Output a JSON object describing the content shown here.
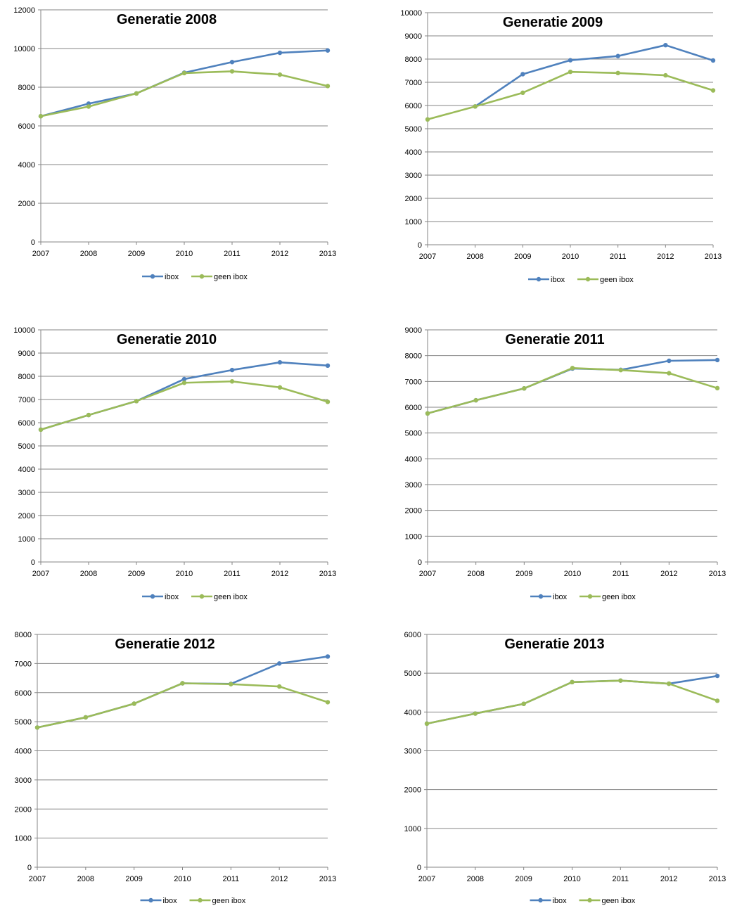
{
  "colors": {
    "ibox": "#4F81BD",
    "geen_ibox": "#9BBB59",
    "grid": "#868686",
    "axis": "#868686"
  },
  "chart_data": [
    {
      "type": "line",
      "title": "Generatie 2008",
      "categories": [
        "2007",
        "2008",
        "2009",
        "2010",
        "2011",
        "2012",
        "2013"
      ],
      "yticks": [
        "0",
        "2000",
        "4000",
        "6000",
        "8000",
        "10000",
        "12000"
      ],
      "ylim": [
        0,
        12000
      ],
      "grid": true,
      "legend": "bottom",
      "series": [
        {
          "name": "ibox",
          "color": "#4F81BD",
          "values": [
            6500,
            7150,
            7680,
            8750,
            9300,
            9780,
            9900
          ]
        },
        {
          "name": "geen ibox",
          "color": "#9BBB59",
          "values": [
            6500,
            7000,
            7680,
            8730,
            8820,
            8650,
            8060
          ]
        }
      ]
    },
    {
      "type": "line",
      "title": "Generatie 2009",
      "categories": [
        "2007",
        "2008",
        "2009",
        "2010",
        "2011",
        "2012",
        "2013"
      ],
      "yticks": [
        "0",
        "1000",
        "2000",
        "3000",
        "4000",
        "5000",
        "6000",
        "7000",
        "8000",
        "9000",
        "10000"
      ],
      "ylim": [
        0,
        10000
      ],
      "grid": true,
      "legend": "bottom",
      "series": [
        {
          "name": "ibox",
          "color": "#4F81BD",
          "values": [
            null,
            5960,
            7350,
            7950,
            8130,
            8600,
            7940
          ]
        },
        {
          "name": "geen ibox",
          "color": "#9BBB59",
          "values": [
            5400,
            5960,
            6550,
            7450,
            7400,
            7300,
            6650
          ]
        }
      ]
    },
    {
      "type": "line",
      "title": "Generatie 2010",
      "categories": [
        "2007",
        "2008",
        "2009",
        "2010",
        "2011",
        "2012",
        "2013"
      ],
      "yticks": [
        "0",
        "1000",
        "2000",
        "3000",
        "4000",
        "5000",
        "6000",
        "7000",
        "8000",
        "9000",
        "10000"
      ],
      "ylim": [
        0,
        10000
      ],
      "grid": true,
      "legend": "bottom",
      "series": [
        {
          "name": "ibox",
          "color": "#4F81BD",
          "values": [
            5700,
            6330,
            6930,
            7880,
            8270,
            8600,
            8460
          ]
        },
        {
          "name": "geen ibox",
          "color": "#9BBB59",
          "values": [
            5700,
            6330,
            6930,
            7720,
            7780,
            7520,
            6900
          ]
        }
      ]
    },
    {
      "type": "line",
      "title": "Generatie 2011",
      "categories": [
        "2007",
        "2008",
        "2009",
        "2010",
        "2011",
        "2012",
        "2013"
      ],
      "yticks": [
        "0",
        "1000",
        "2000",
        "3000",
        "4000",
        "5000",
        "6000",
        "7000",
        "8000",
        "9000"
      ],
      "ylim": [
        0,
        9000
      ],
      "grid": true,
      "legend": "bottom",
      "series": [
        {
          "name": "ibox",
          "color": "#4F81BD",
          "values": [
            5760,
            6270,
            6730,
            7500,
            7450,
            7800,
            7830
          ]
        },
        {
          "name": "geen ibox",
          "color": "#9BBB59",
          "values": [
            5760,
            6270,
            6730,
            7520,
            7440,
            7320,
            6740
          ]
        }
      ]
    },
    {
      "type": "line",
      "title": "Generatie 2012",
      "categories": [
        "2007",
        "2008",
        "2009",
        "2010",
        "2011",
        "2012",
        "2013"
      ],
      "yticks": [
        "0",
        "1000",
        "2000",
        "3000",
        "4000",
        "5000",
        "6000",
        "7000",
        "8000"
      ],
      "ylim": [
        0,
        8000
      ],
      "grid": true,
      "legend": "bottom",
      "series": [
        {
          "name": "ibox",
          "color": "#4F81BD",
          "values": [
            4800,
            5150,
            5620,
            6320,
            6300,
            7000,
            7240
          ]
        },
        {
          "name": "geen ibox",
          "color": "#9BBB59",
          "values": [
            4800,
            5150,
            5620,
            6320,
            6290,
            6210,
            5670
          ]
        }
      ]
    },
    {
      "type": "line",
      "title": "Generatie 2013",
      "categories": [
        "2007",
        "2008",
        "2009",
        "2010",
        "2011",
        "2012",
        "2013"
      ],
      "yticks": [
        "0",
        "1000",
        "2000",
        "3000",
        "4000",
        "5000",
        "6000"
      ],
      "ylim": [
        0,
        6000
      ],
      "grid": true,
      "legend": "bottom",
      "series": [
        {
          "name": "ibox",
          "color": "#4F81BD",
          "values": [
            3700,
            3960,
            4210,
            4770,
            4810,
            4730,
            4930
          ]
        },
        {
          "name": "geen ibox",
          "color": "#9BBB59",
          "values": [
            3700,
            3960,
            4210,
            4770,
            4810,
            4730,
            4290
          ]
        }
      ]
    }
  ]
}
